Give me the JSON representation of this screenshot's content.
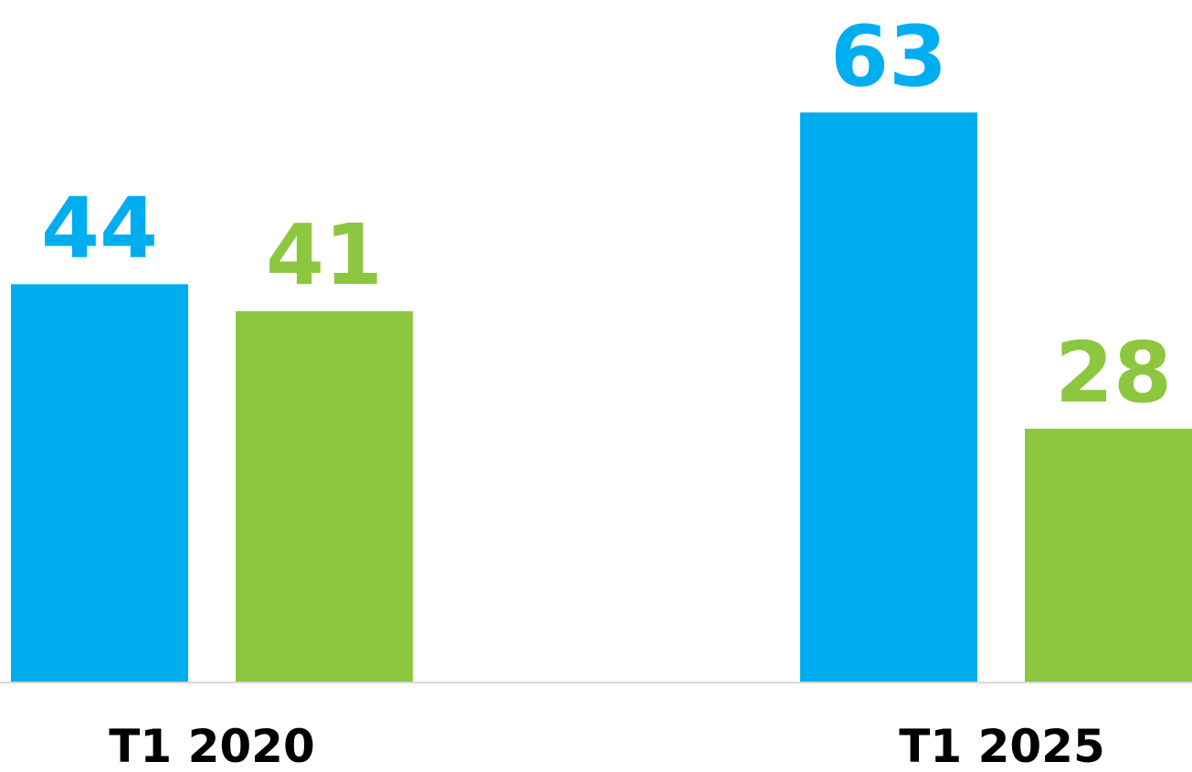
{
  "chart_data": {
    "type": "bar",
    "categories": [
      "T1 2020",
      "T1 2025"
    ],
    "series": [
      {
        "color": "#00AEEF",
        "values": [
          44,
          63
        ]
      },
      {
        "color": "#8DC63F",
        "values": [
          41,
          28
        ]
      }
    ],
    "ylim": [
      0,
      70
    ],
    "grid": false,
    "legend": "none",
    "data_labels": true
  },
  "colors": {
    "axis_line": "#D9D9D9",
    "category_label": "#000000"
  }
}
